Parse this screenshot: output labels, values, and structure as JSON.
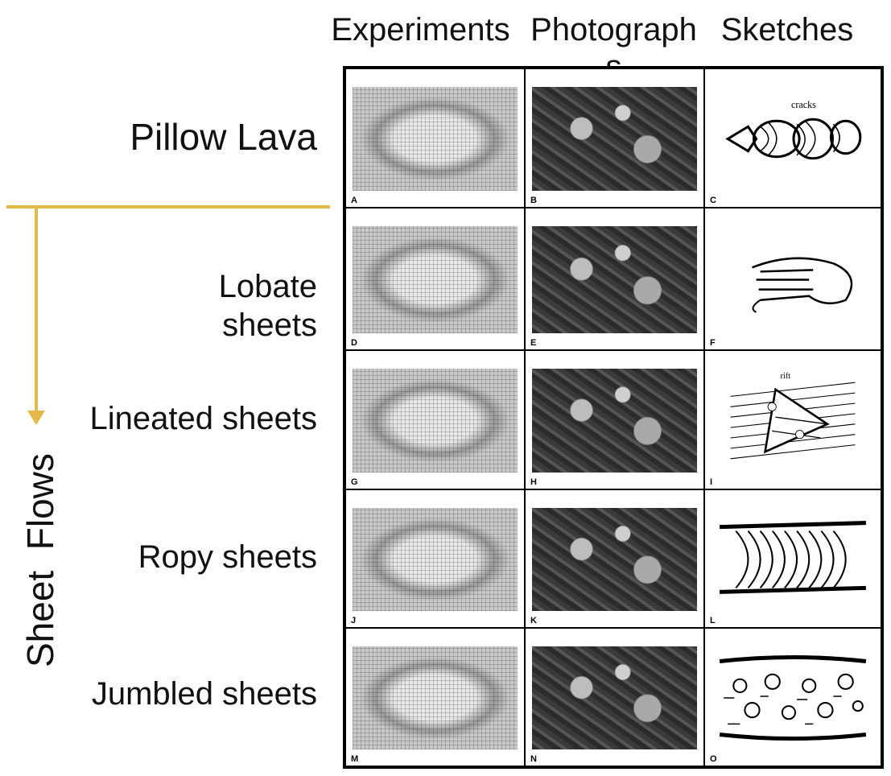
{
  "columns": [
    "Experiments",
    "Photographs",
    "Sketches"
  ],
  "rows": [
    {
      "label": "Pillow Lava",
      "letters": [
        "A",
        "B",
        "C"
      ],
      "sketch_label": "cracks"
    },
    {
      "label": "Lobate\nsheets",
      "letters": [
        "D",
        "E",
        "F"
      ]
    },
    {
      "label": "Lineated sheets",
      "letters": [
        "G",
        "H",
        "I"
      ],
      "sketch_label": "rift"
    },
    {
      "label": "Ropy sheets",
      "letters": [
        "J",
        "K",
        "L"
      ]
    },
    {
      "label": "Jumbled sheets",
      "letters": [
        "M",
        "N",
        "O"
      ]
    }
  ],
  "group_label": "Sheet  Flows",
  "accent_color": "#e5b84a"
}
